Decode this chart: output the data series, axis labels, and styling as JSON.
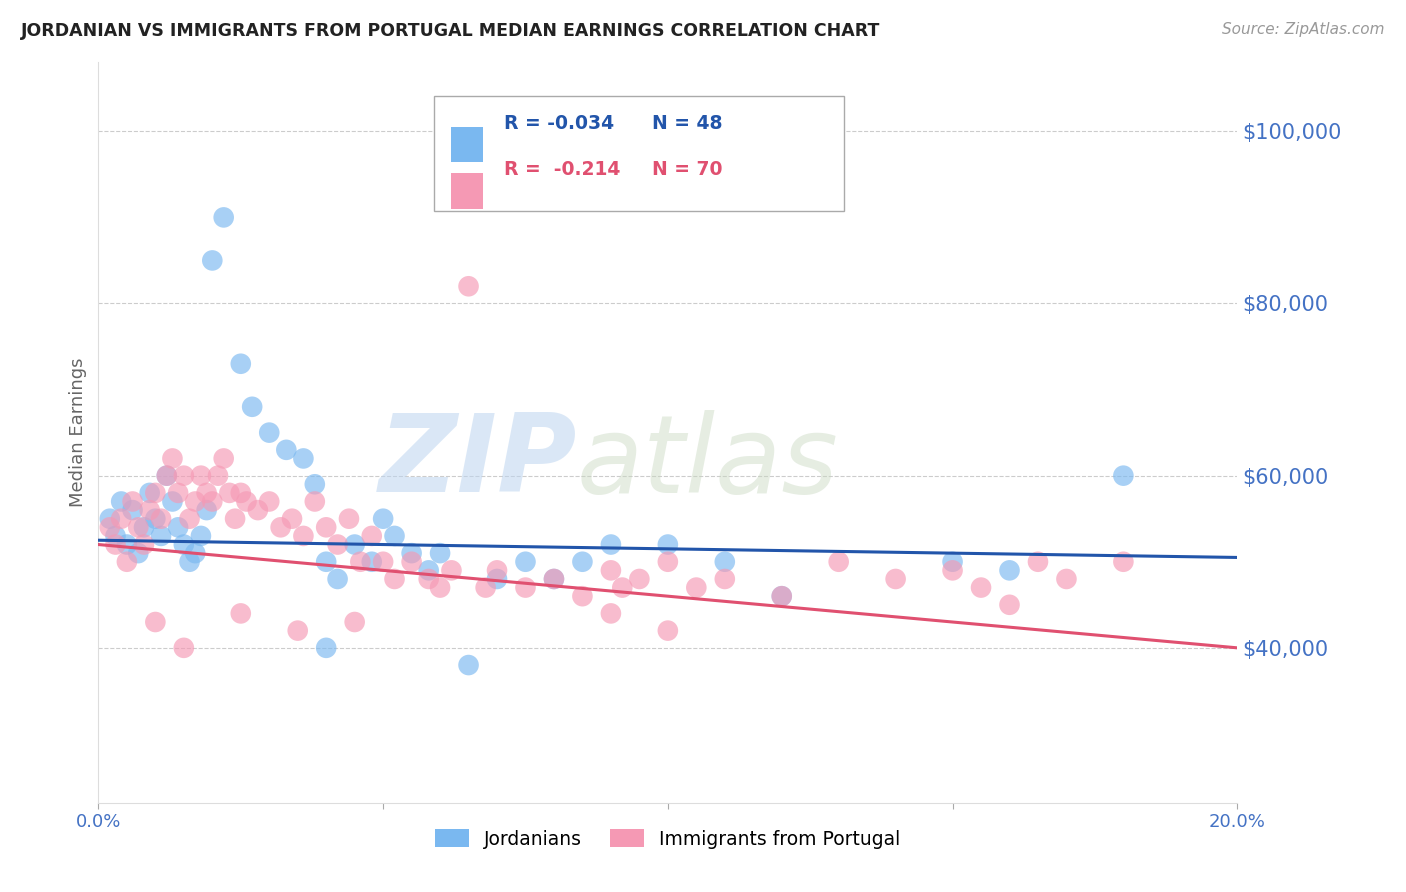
{
  "title": "JORDANIAN VS IMMIGRANTS FROM PORTUGAL MEDIAN EARNINGS CORRELATION CHART",
  "source": "Source: ZipAtlas.com",
  "ylabel": "Median Earnings",
  "xlim": [
    0.0,
    0.2
  ],
  "ylim": [
    22000,
    108000
  ],
  "yticks": [
    40000,
    60000,
    80000,
    100000
  ],
  "ytick_labels": [
    "$40,000",
    "$60,000",
    "$80,000",
    "$100,000"
  ],
  "xticks": [
    0.0,
    0.05,
    0.1,
    0.15,
    0.2
  ],
  "xtick_labels": [
    "0.0%",
    "",
    "",
    "",
    "20.0%"
  ],
  "legend_label1": "Jordanians",
  "legend_label2": "Immigrants from Portugal",
  "R1": "-0.034",
  "N1": "48",
  "R2": "-0.214",
  "N2": "70",
  "watermark_zip": "ZIP",
  "watermark_atlas": "atlas",
  "color_blue": "#7ab8f0",
  "color_pink": "#f599b4",
  "color_blue_line": "#2255aa",
  "color_pink_line": "#e05070",
  "color_axis_labels": "#4472C4",
  "color_grid": "#cccccc",
  "background": "#ffffff",
  "jordanians": [
    [
      0.002,
      55000
    ],
    [
      0.003,
      53000
    ],
    [
      0.004,
      57000
    ],
    [
      0.005,
      52000
    ],
    [
      0.006,
      56000
    ],
    [
      0.007,
      51000
    ],
    [
      0.008,
      54000
    ],
    [
      0.009,
      58000
    ],
    [
      0.01,
      55000
    ],
    [
      0.011,
      53000
    ],
    [
      0.012,
      60000
    ],
    [
      0.013,
      57000
    ],
    [
      0.014,
      54000
    ],
    [
      0.015,
      52000
    ],
    [
      0.016,
      50000
    ],
    [
      0.017,
      51000
    ],
    [
      0.018,
      53000
    ],
    [
      0.019,
      56000
    ],
    [
      0.02,
      85000
    ],
    [
      0.022,
      90000
    ],
    [
      0.025,
      73000
    ],
    [
      0.027,
      68000
    ],
    [
      0.03,
      65000
    ],
    [
      0.033,
      63000
    ],
    [
      0.036,
      62000
    ],
    [
      0.038,
      59000
    ],
    [
      0.04,
      50000
    ],
    [
      0.042,
      48000
    ],
    [
      0.045,
      52000
    ],
    [
      0.048,
      50000
    ],
    [
      0.05,
      55000
    ],
    [
      0.052,
      53000
    ],
    [
      0.055,
      51000
    ],
    [
      0.058,
      49000
    ],
    [
      0.06,
      51000
    ],
    [
      0.065,
      38000
    ],
    [
      0.07,
      48000
    ],
    [
      0.075,
      50000
    ],
    [
      0.08,
      48000
    ],
    [
      0.085,
      50000
    ],
    [
      0.09,
      52000
    ],
    [
      0.1,
      52000
    ],
    [
      0.11,
      50000
    ],
    [
      0.12,
      46000
    ],
    [
      0.15,
      50000
    ],
    [
      0.16,
      49000
    ],
    [
      0.04,
      40000
    ],
    [
      0.18,
      60000
    ]
  ],
  "portugal": [
    [
      0.002,
      54000
    ],
    [
      0.003,
      52000
    ],
    [
      0.004,
      55000
    ],
    [
      0.005,
      50000
    ],
    [
      0.006,
      57000
    ],
    [
      0.007,
      54000
    ],
    [
      0.008,
      52000
    ],
    [
      0.009,
      56000
    ],
    [
      0.01,
      58000
    ],
    [
      0.011,
      55000
    ],
    [
      0.012,
      60000
    ],
    [
      0.013,
      62000
    ],
    [
      0.014,
      58000
    ],
    [
      0.015,
      60000
    ],
    [
      0.016,
      55000
    ],
    [
      0.017,
      57000
    ],
    [
      0.018,
      60000
    ],
    [
      0.019,
      58000
    ],
    [
      0.02,
      57000
    ],
    [
      0.021,
      60000
    ],
    [
      0.022,
      62000
    ],
    [
      0.023,
      58000
    ],
    [
      0.024,
      55000
    ],
    [
      0.025,
      58000
    ],
    [
      0.026,
      57000
    ],
    [
      0.028,
      56000
    ],
    [
      0.03,
      57000
    ],
    [
      0.032,
      54000
    ],
    [
      0.034,
      55000
    ],
    [
      0.036,
      53000
    ],
    [
      0.038,
      57000
    ],
    [
      0.04,
      54000
    ],
    [
      0.042,
      52000
    ],
    [
      0.044,
      55000
    ],
    [
      0.046,
      50000
    ],
    [
      0.048,
      53000
    ],
    [
      0.05,
      50000
    ],
    [
      0.052,
      48000
    ],
    [
      0.055,
      50000
    ],
    [
      0.058,
      48000
    ],
    [
      0.06,
      47000
    ],
    [
      0.062,
      49000
    ],
    [
      0.065,
      82000
    ],
    [
      0.068,
      47000
    ],
    [
      0.07,
      49000
    ],
    [
      0.075,
      47000
    ],
    [
      0.08,
      48000
    ],
    [
      0.085,
      46000
    ],
    [
      0.09,
      49000
    ],
    [
      0.092,
      47000
    ],
    [
      0.095,
      48000
    ],
    [
      0.1,
      50000
    ],
    [
      0.105,
      47000
    ],
    [
      0.11,
      48000
    ],
    [
      0.12,
      46000
    ],
    [
      0.13,
      50000
    ],
    [
      0.14,
      48000
    ],
    [
      0.15,
      49000
    ],
    [
      0.155,
      47000
    ],
    [
      0.16,
      45000
    ],
    [
      0.165,
      50000
    ],
    [
      0.17,
      48000
    ],
    [
      0.18,
      50000
    ],
    [
      0.01,
      43000
    ],
    [
      0.015,
      40000
    ],
    [
      0.025,
      44000
    ],
    [
      0.035,
      42000
    ],
    [
      0.045,
      43000
    ],
    [
      0.09,
      44000
    ],
    [
      0.1,
      42000
    ]
  ]
}
